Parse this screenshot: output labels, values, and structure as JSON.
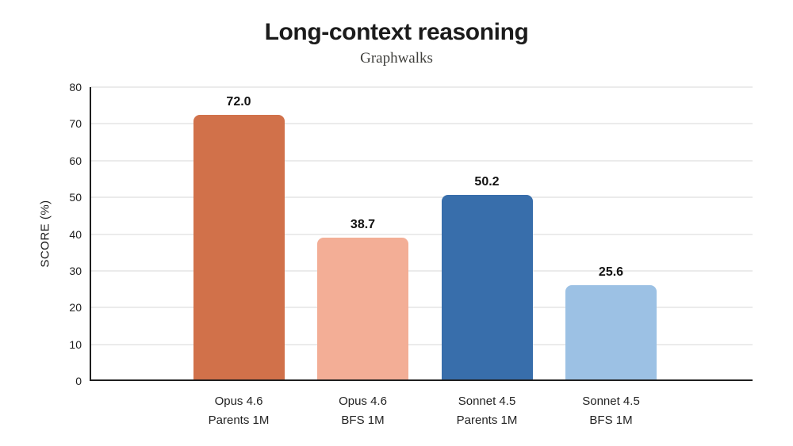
{
  "header": {
    "title": "Long-context reasoning",
    "subtitle": "Graphwalks"
  },
  "chart_data": {
    "type": "bar",
    "title": "Long-context reasoning",
    "subtitle": "Graphwalks",
    "categories": [
      [
        "Opus 4.6",
        "Parents 1M"
      ],
      [
        "Opus 4.6",
        "BFS 1M"
      ],
      [
        "Sonnet 4.5",
        "Parents 1M"
      ],
      [
        "Sonnet 4.5",
        "BFS 1M"
      ]
    ],
    "values": [
      72.0,
      38.7,
      50.2,
      25.6
    ],
    "value_labels": [
      "72.0",
      "38.7",
      "50.2",
      "25.6"
    ],
    "bar_colors": [
      "#d1714a",
      "#f3ae96",
      "#386eab",
      "#9cc1e4"
    ],
    "xlabel": "",
    "ylabel": "SCORE (%)",
    "ylim": [
      0,
      80
    ],
    "yticks": [
      0,
      10,
      20,
      30,
      40,
      50,
      60,
      70,
      80
    ],
    "grid": true,
    "legend": false,
    "grid_color": "#ebebeb",
    "axis_color": "#1f1f1f"
  }
}
